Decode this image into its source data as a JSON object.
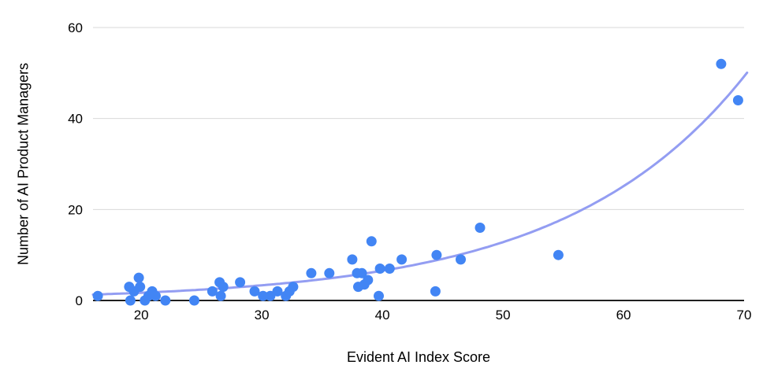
{
  "chart_data": {
    "type": "scatter",
    "title": "",
    "xlabel": "Evident AI Index Score",
    "ylabel": "Number of AI Product Managers",
    "xlim": [
      16,
      70
    ],
    "ylim": [
      0,
      60
    ],
    "x_ticks": [
      20,
      30,
      40,
      50,
      60,
      70
    ],
    "y_ticks": [
      0,
      20,
      40,
      60
    ],
    "grid": "horizontal-only",
    "legend": "none",
    "point_color": "#4285f4",
    "trendline_color": "#939df2",
    "gridline_color": "#d9d9d9",
    "axis_color": "#1f1f1f",
    "points": [
      [
        16.4,
        1
      ],
      [
        19.0,
        3
      ],
      [
        19.1,
        0
      ],
      [
        19.4,
        2
      ],
      [
        19.8,
        5
      ],
      [
        19.9,
        3
      ],
      [
        20.3,
        0
      ],
      [
        20.6,
        1
      ],
      [
        20.9,
        2
      ],
      [
        21.2,
        1
      ],
      [
        22.0,
        0
      ],
      [
        24.4,
        0
      ],
      [
        25.9,
        2
      ],
      [
        26.5,
        4
      ],
      [
        26.6,
        1
      ],
      [
        26.8,
        3
      ],
      [
        28.2,
        4
      ],
      [
        29.4,
        2
      ],
      [
        30.1,
        1
      ],
      [
        30.7,
        1
      ],
      [
        31.3,
        2
      ],
      [
        32.0,
        1
      ],
      [
        32.3,
        2
      ],
      [
        32.6,
        3
      ],
      [
        34.1,
        6
      ],
      [
        35.6,
        6
      ],
      [
        37.5,
        9
      ],
      [
        37.9,
        6
      ],
      [
        38.0,
        3
      ],
      [
        38.3,
        6
      ],
      [
        38.5,
        3.5
      ],
      [
        38.8,
        4.5
      ],
      [
        39.1,
        13
      ],
      [
        39.7,
        1
      ],
      [
        39.8,
        7
      ],
      [
        40.6,
        7
      ],
      [
        41.6,
        9
      ],
      [
        44.4,
        2
      ],
      [
        44.5,
        10
      ],
      [
        46.5,
        9
      ],
      [
        48.1,
        16
      ],
      [
        54.6,
        10
      ],
      [
        68.1,
        52
      ],
      [
        69.5,
        44
      ]
    ],
    "trendline": {
      "type": "exponential",
      "a": 0.443,
      "b": 0.0673,
      "x_start": 16,
      "x_end": 70.35
    }
  }
}
